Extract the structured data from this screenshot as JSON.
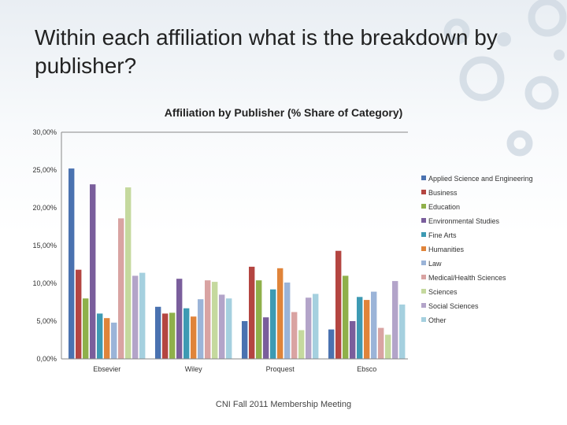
{
  "slide": {
    "title": "Within each affiliation what is the breakdown by publisher?",
    "footer": "CNI Fall 2011 Membership Meeting"
  },
  "chart_data": {
    "type": "bar",
    "title": "Affiliation by Publisher (% Share of Category)",
    "xlabel": "",
    "ylabel": "",
    "ylim": [
      0,
      30
    ],
    "yticks": [
      "0,00%",
      "5,00%",
      "10,00%",
      "15,00%",
      "20,00%",
      "25,00%",
      "30,00%"
    ],
    "categories": [
      "Ebsevier",
      "Wiley",
      "Proquest",
      "Ebsco"
    ],
    "legend_position": "right",
    "grid": false,
    "series": [
      {
        "name": "Applied Science and Engineering",
        "color": "#4a72b0",
        "values": [
          25.2,
          6.9,
          5.0,
          3.9
        ]
      },
      {
        "name": "Business",
        "color": "#b44541",
        "values": [
          11.8,
          6.0,
          12.2,
          14.3
        ]
      },
      {
        "name": "Education",
        "color": "#8fb04a",
        "values": [
          8.0,
          6.1,
          10.4,
          11.0
        ]
      },
      {
        "name": "Environmental Studies",
        "color": "#7a5e9c",
        "values": [
          23.1,
          10.6,
          5.5,
          5.0
        ]
      },
      {
        "name": "Fine Arts",
        "color": "#3d9ab3",
        "values": [
          6.0,
          6.7,
          9.2,
          8.2
        ]
      },
      {
        "name": "Humanities",
        "color": "#e0843a",
        "values": [
          5.4,
          5.6,
          12.0,
          7.8
        ]
      },
      {
        "name": "Law",
        "color": "#9bb4d8",
        "values": [
          4.8,
          7.9,
          10.1,
          8.9
        ]
      },
      {
        "name": "Medical/Health Sciences",
        "color": "#d9a3a2",
        "values": [
          18.6,
          10.4,
          6.2,
          4.1
        ]
      },
      {
        "name": "Sciences",
        "color": "#c5d99e",
        "values": [
          22.7,
          10.2,
          3.8,
          3.2
        ]
      },
      {
        "name": "Social Sciences",
        "color": "#b3a4c9",
        "values": [
          11.0,
          8.5,
          8.1,
          10.3
        ]
      },
      {
        "name": "Other",
        "color": "#a5d0df",
        "values": [
          11.4,
          8.0,
          8.6,
          7.2
        ]
      }
    ]
  }
}
